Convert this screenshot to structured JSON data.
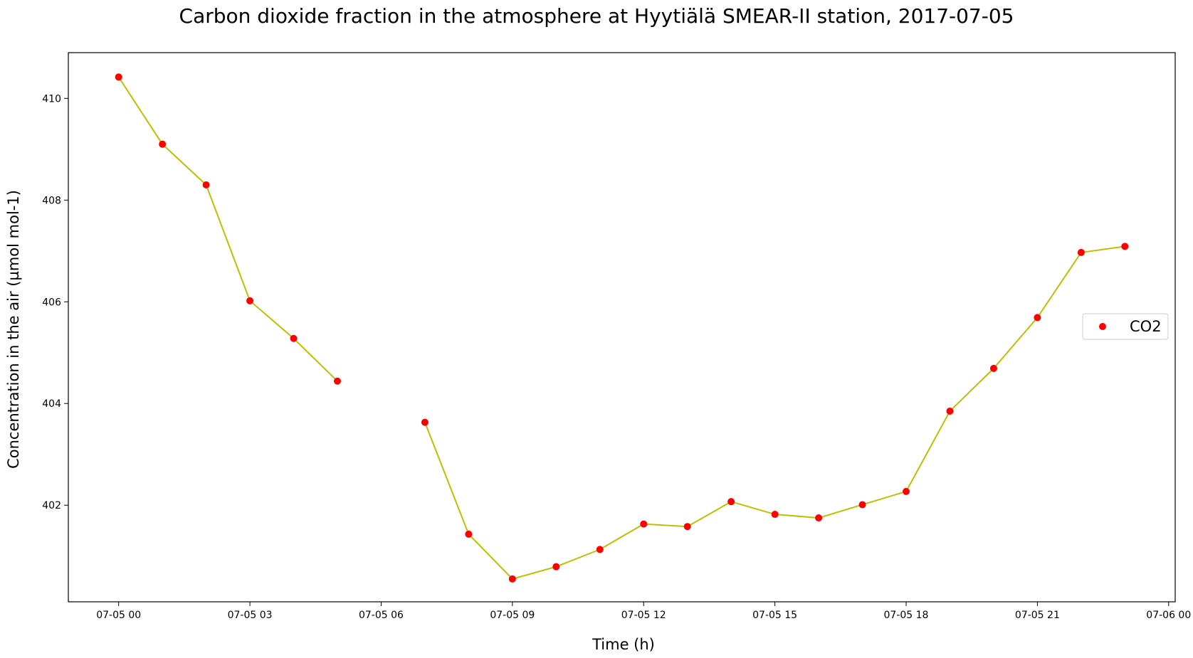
{
  "chart_data": {
    "type": "line",
    "title": "Carbon dioxide fraction in the atmosphere at Hyytiälä SMEAR-II station, 2017-07-05",
    "xlabel": "Time (h)",
    "ylabel": "Concentration in the air (µmol mol-1)",
    "x_ticks": [
      "07-05 00",
      "07-05 03",
      "07-05 06",
      "07-05 09",
      "07-05 12",
      "07-05 15",
      "07-05 18",
      "07-05 21",
      "07-06 00"
    ],
    "y_ticks": [
      402,
      404,
      406,
      408,
      410
    ],
    "ylim": [
      400.1,
      410.9
    ],
    "xlim_hours": [
      -1.15,
      24.15
    ],
    "grid": false,
    "legend_position": "center-right",
    "series": [
      {
        "name": "CO2",
        "marker_color": "#ff0000",
        "line_color": "#bfbf00",
        "points": [
          {
            "time": "2017-07-05 00:00",
            "value": 410.42
          },
          {
            "time": "2017-07-05 01:00",
            "value": 409.1
          },
          {
            "time": "2017-07-05 02:00",
            "value": 408.3
          },
          {
            "time": "2017-07-05 03:00",
            "value": 406.02
          },
          {
            "time": "2017-07-05 04:00",
            "value": 405.28
          },
          {
            "time": "2017-07-05 05:00",
            "value": 404.44
          },
          {
            "time": "2017-07-05 07:00",
            "value": 403.63
          },
          {
            "time": "2017-07-05 08:00",
            "value": 401.43
          },
          {
            "time": "2017-07-05 09:00",
            "value": 400.55
          },
          {
            "time": "2017-07-05 10:00",
            "value": 400.79
          },
          {
            "time": "2017-07-05 11:00",
            "value": 401.13
          },
          {
            "time": "2017-07-05 12:00",
            "value": 401.63
          },
          {
            "time": "2017-07-05 13:00",
            "value": 401.58
          },
          {
            "time": "2017-07-05 14:00",
            "value": 402.07
          },
          {
            "time": "2017-07-05 15:00",
            "value": 401.82
          },
          {
            "time": "2017-07-05 16:00",
            "value": 401.75
          },
          {
            "time": "2017-07-05 17:00",
            "value": 402.01
          },
          {
            "time": "2017-07-05 18:00",
            "value": 402.27
          },
          {
            "time": "2017-07-05 19:00",
            "value": 403.85
          },
          {
            "time": "2017-07-05 20:00",
            "value": 404.69
          },
          {
            "time": "2017-07-05 21:00",
            "value": 405.69
          },
          {
            "time": "2017-07-05 22:00",
            "value": 406.97
          },
          {
            "time": "2017-07-05 23:00",
            "value": 407.09
          }
        ]
      }
    ]
  }
}
